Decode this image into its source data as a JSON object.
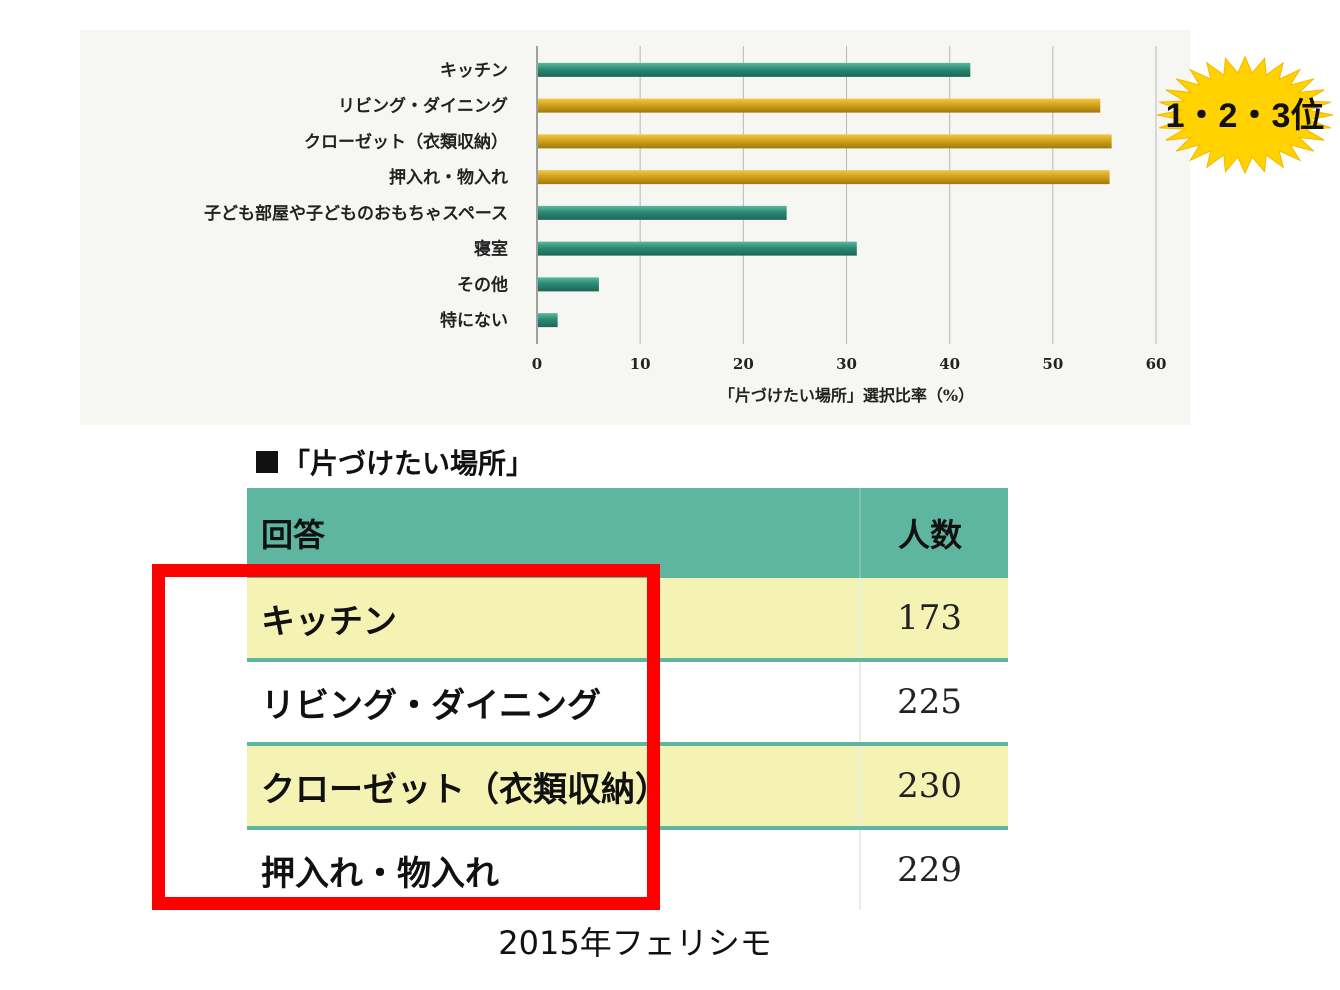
{
  "chart_data": {
    "type": "bar",
    "orientation": "horizontal",
    "categories": [
      "キッチン",
      "リビング・ダイニング",
      "クローゼット（衣類収納）",
      "押入れ・物入れ",
      "子ども部屋や子どものおもちゃスペース",
      "寝室",
      "その他",
      "特にない"
    ],
    "values": [
      42,
      54.6,
      55.7,
      55.5,
      24.2,
      31,
      6,
      2
    ],
    "highlighted": [
      false,
      true,
      true,
      true,
      false,
      false,
      false,
      false
    ],
    "xlabel": "「片づけたい場所」選択比率（%）",
    "xlim": [
      0,
      60
    ],
    "xticks": [
      "0",
      "10",
      "20",
      "30",
      "40",
      "50",
      "60"
    ],
    "grid": "vertical",
    "colors": {
      "normal": "#2a8a73",
      "highlight": "#d4a21a"
    }
  },
  "badge": {
    "text": "1・2・3位",
    "color": "#ffd200"
  },
  "table": {
    "title": "「片づけたい場所」",
    "headers": [
      "回答",
      "人数"
    ],
    "rows": [
      {
        "answer": "キッチン",
        "count": "173"
      },
      {
        "answer": "リビング・ダイニング",
        "count": "225"
      },
      {
        "answer": "クローゼット（衣類収納）",
        "count": "230"
      },
      {
        "answer": "押入れ・物入れ",
        "count": "229"
      }
    ],
    "header_color": "#5fb6a0",
    "highlight_color": "#f4f3b4"
  },
  "highlight_frame_color": "#ff0000",
  "source": "2015年フェリシモ"
}
